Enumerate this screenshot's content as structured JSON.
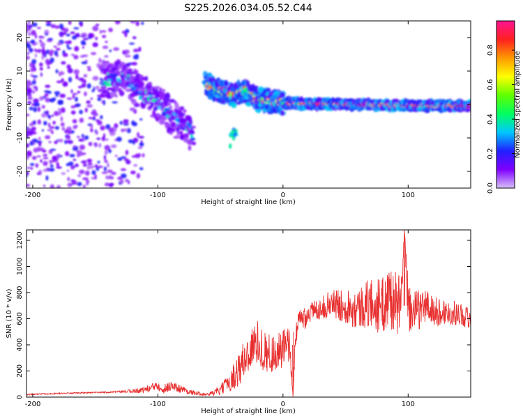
{
  "page": {
    "title": "S225.2026.034.05.52.C44"
  },
  "chart_data": [
    {
      "type": "heatmap",
      "title": "S225.2026.034.05.52.C44",
      "xlabel": "Height of straight line (km)",
      "ylabel": "Frequency (Hz)",
      "xlim": [
        -205,
        150
      ],
      "ylim": [
        -25,
        25
      ],
      "xticks": [
        -200,
        -100,
        0,
        100
      ],
      "xtick_labels": [
        "-200",
        "-100",
        "0",
        "100"
      ],
      "yticks": [
        -20,
        -10,
        0,
        10,
        20
      ],
      "ytick_labels": [
        "-20",
        "-10",
        "0",
        "10",
        "20"
      ],
      "colorbar": {
        "label": "Normalized spectral amplitude",
        "range": [
          0,
          0.97
        ],
        "ticks": [
          0.0,
          0.2,
          0.4,
          0.6,
          0.8
        ],
        "tick_labels": [
          "0.0",
          "0.2",
          "0.4",
          "0.6",
          "0.8"
        ],
        "colormap": [
          "#d9c2f7",
          "#7f00ff",
          "#2020ff",
          "#00c8ff",
          "#00ff60",
          "#60ff00",
          "#ffff00",
          "#ff9900",
          "#ff2020",
          "#ff1493"
        ]
      },
      "features": [
        {
          "name": "diffuse noise",
          "x_range": [
            -205,
            -120
          ],
          "y_range": [
            -25,
            25
          ],
          "amplitude": 0.15
        },
        {
          "name": "descending trace",
          "points": [
            [
              -145,
              7
            ],
            [
              -125,
              8
            ],
            [
              -115,
              4
            ],
            [
              -100,
              0
            ],
            [
              -90,
              -3
            ],
            [
              -80,
              -6
            ],
            [
              -72,
              -9
            ]
          ],
          "amplitude": 0.35
        },
        {
          "name": "main trace",
          "points": [
            [
              -62,
              6
            ],
            [
              -50,
              4
            ],
            [
              -40,
              3
            ],
            [
              -30,
              4
            ],
            [
              -20,
              1.5
            ],
            [
              -10,
              1
            ],
            [
              0,
              0.5
            ],
            [
              20,
              0.2
            ],
            [
              60,
              0
            ],
            [
              100,
              -0.3
            ],
            [
              150,
              -0.5
            ]
          ],
          "amplitude": 0.85
        },
        {
          "name": "isolated blob",
          "points": [
            [
              -40,
              -10
            ]
          ],
          "amplitude": 0.4
        }
      ]
    },
    {
      "type": "line",
      "xlabel": "Height of straight line (km)",
      "ylabel": "SNR (10 * v/v)",
      "xlim": [
        -205,
        150
      ],
      "ylim": [
        0,
        1280
      ],
      "xticks": [
        -200,
        -100,
        0,
        100
      ],
      "xtick_labels": [
        "-200",
        "-100",
        "0",
        "100"
      ],
      "yticks": [
        0,
        200,
        400,
        600,
        800,
        1000,
        1200
      ],
      "ytick_labels": [
        "0",
        "200",
        "400",
        "600",
        "800",
        "1000",
        "1200"
      ],
      "line_color": "#e83030",
      "series": [
        {
          "name": "SNR",
          "x": [
            -205,
            -190,
            -170,
            -150,
            -130,
            -115,
            -105,
            -100,
            -95,
            -90,
            -85,
            -80,
            -75,
            -70,
            -60,
            -50,
            -45,
            -40,
            -35,
            -30,
            -25,
            -20,
            -15,
            -10,
            -5,
            0,
            5,
            8,
            10,
            15,
            20,
            25,
            30,
            35,
            40,
            45,
            50,
            55,
            60,
            65,
            70,
            75,
            80,
            85,
            90,
            95,
            97,
            100,
            105,
            110,
            115,
            120,
            130,
            140,
            150
          ],
          "values": [
            20,
            25,
            30,
            35,
            40,
            50,
            70,
            100,
            60,
            90,
            70,
            60,
            40,
            30,
            20,
            50,
            100,
            150,
            220,
            300,
            380,
            420,
            350,
            330,
            340,
            360,
            400,
            5,
            500,
            600,
            640,
            660,
            680,
            700,
            720,
            700,
            700,
            690,
            680,
            700,
            720,
            700,
            700,
            780,
            720,
            700,
            1280,
            700,
            650,
            680,
            700,
            650,
            650,
            640,
            600
          ],
          "noise": [
            5,
            5,
            5,
            5,
            8,
            20,
            30,
            50,
            40,
            40,
            35,
            30,
            20,
            15,
            10,
            40,
            60,
            100,
            140,
            170,
            160,
            170,
            160,
            150,
            150,
            160,
            150,
            0,
            120,
            110,
            90,
            80,
            80,
            100,
            110,
            120,
            130,
            150,
            160,
            180,
            200,
            210,
            220,
            260,
            240,
            250,
            0,
            230,
            160,
            150,
            140,
            120,
            100,
            90,
            80
          ]
        }
      ]
    }
  ]
}
